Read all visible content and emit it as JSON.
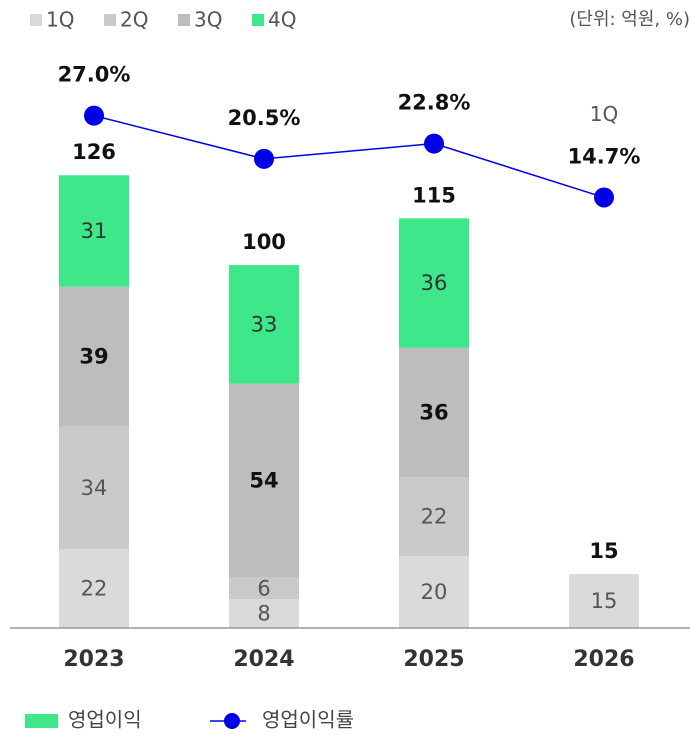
{
  "chart_data": {
    "type": "stacked_bar_line",
    "unit_note": "(단위: 억원, %)",
    "categories": [
      "2023",
      "2024",
      "2025",
      "2026"
    ],
    "ylim": [
      0,
      150
    ],
    "y2lim": [
      -50,
      31
    ],
    "series": [
      {
        "name": "1Q",
        "color": "#dadada",
        "label_color": "#555555",
        "bold": false,
        "values": [
          22,
          8,
          20,
          15
        ]
      },
      {
        "name": "2Q",
        "color": "#cacaca",
        "label_color": "#555555",
        "bold": false,
        "values": [
          34,
          6,
          22,
          null
        ]
      },
      {
        "name": "3Q",
        "color": "#bdbdbd",
        "label_color": "#111111",
        "bold": true,
        "values": [
          39,
          54,
          36,
          null
        ]
      },
      {
        "name": "4Q",
        "color": "#3ee88a",
        "label_color": "#333333",
        "bold": false,
        "values": [
          31,
          33,
          36,
          null
        ]
      }
    ],
    "totals": [
      126,
      100,
      115,
      15
    ],
    "line": {
      "name": "영업이익률",
      "color": "#0000e6",
      "axis": "y2",
      "values": [
        27.0,
        20.5,
        22.8,
        14.7
      ],
      "value_labels": [
        "27.0%",
        "20.5%",
        "22.8%",
        "14.7%"
      ]
    },
    "bar_legend": {
      "name": "영업이익",
      "color": "#3ee88a"
    },
    "annotations": [
      {
        "text": "1Q",
        "category": 3
      }
    ]
  }
}
